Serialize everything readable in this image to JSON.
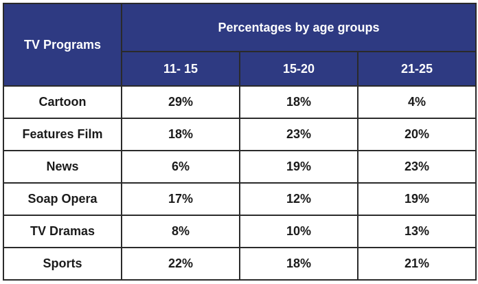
{
  "table": {
    "row_header_label": "TV Programs",
    "group_header_label": "Percentages by age groups",
    "columns": [
      "11- 15",
      "15-20",
      "21-25"
    ]
  },
  "chart_data": {
    "type": "table",
    "row_header": "TV Programs",
    "group_header": "Percentages by age groups",
    "columns": [
      "11- 15",
      "15-20",
      "21-25"
    ],
    "rows": [
      {
        "label": "Cartoon",
        "values": [
          "29%",
          "18%",
          "4%"
        ]
      },
      {
        "label": "Features Film",
        "values": [
          "18%",
          "23%",
          "20%"
        ]
      },
      {
        "label": "News",
        "values": [
          "6%",
          "19%",
          "23%"
        ]
      },
      {
        "label": "Soap Opera",
        "values": [
          "17%",
          "12%",
          "19%"
        ]
      },
      {
        "label": "TV Dramas",
        "values": [
          "8%",
          "10%",
          "13%"
        ]
      },
      {
        "label": "Sports",
        "values": [
          "22%",
          "18%",
          "21%"
        ]
      }
    ]
  },
  "colors": {
    "header_bg": "#2e3a82",
    "header_text": "#ffffff",
    "border": "#2a2a2a"
  }
}
